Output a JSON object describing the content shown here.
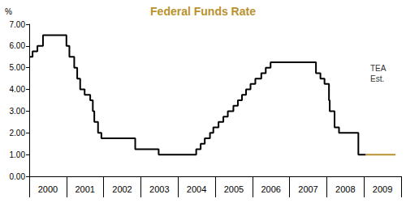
{
  "chart_data": {
    "type": "line",
    "title": "Federal Funds Rate",
    "y_label": "%",
    "annotation": [
      "TEA",
      "Est."
    ],
    "line_style": "step",
    "grid": false,
    "xlim": [
      2000,
      2010
    ],
    "xticks": [
      {
        "value": 2000.5,
        "label": "2000"
      },
      {
        "value": 2001.5,
        "label": "2001"
      },
      {
        "value": 2002.5,
        "label": "2002"
      },
      {
        "value": 2003.5,
        "label": "2003"
      },
      {
        "value": 2004.5,
        "label": "2004"
      },
      {
        "value": 2005.5,
        "label": "2005"
      },
      {
        "value": 2006.5,
        "label": "2006"
      },
      {
        "value": 2007.5,
        "label": "2007"
      },
      {
        "value": 2008.5,
        "label": "2008"
      },
      {
        "value": 2009.5,
        "label": "2009"
      }
    ],
    "ylim": [
      0,
      7
    ],
    "yticks": [
      {
        "value": 0,
        "label": "0.00"
      },
      {
        "value": 1,
        "label": "1.00"
      },
      {
        "value": 2,
        "label": "2.00"
      },
      {
        "value": 3,
        "label": "3.00"
      },
      {
        "value": 4,
        "label": "4.00"
      },
      {
        "value": 5,
        "label": "5.00"
      },
      {
        "value": 6,
        "label": "6.00"
      },
      {
        "value": 7,
        "label": "7.00"
      }
    ],
    "series": [
      {
        "color": "#000000",
        "x": [
          2000.0,
          2000.09,
          2000.22,
          2000.37,
          2001.0,
          2001.08,
          2001.21,
          2001.29,
          2001.37,
          2001.49,
          2001.64,
          2001.71,
          2001.75,
          2001.85,
          2001.94,
          2002.85,
          2003.48,
          2004.49,
          2004.61,
          2004.72,
          2004.86,
          2004.95,
          2005.09,
          2005.22,
          2005.34,
          2005.49,
          2005.61,
          2005.72,
          2005.83,
          2005.95,
          2006.08,
          2006.24,
          2006.36,
          2006.49,
          2007.71,
          2007.83,
          2007.94,
          2008.06,
          2008.08,
          2008.21,
          2008.33,
          2008.85,
          2009.05
        ],
        "values": [
          5.5,
          5.75,
          6.0,
          6.5,
          6.0,
          5.5,
          5.0,
          4.5,
          4.0,
          3.75,
          3.5,
          3.0,
          2.5,
          2.0,
          1.75,
          1.25,
          1.0,
          1.25,
          1.5,
          1.75,
          2.0,
          2.25,
          2.5,
          2.75,
          3.0,
          3.25,
          3.5,
          3.75,
          4.0,
          4.25,
          4.5,
          4.75,
          5.0,
          5.25,
          4.75,
          4.5,
          4.25,
          3.5,
          3.0,
          2.25,
          2.0,
          1.0,
          1.0
        ]
      },
      {
        "color": "#b8922e",
        "x": [
          2009.05,
          2009.85
        ],
        "values": [
          1.0,
          1.0
        ]
      }
    ]
  }
}
